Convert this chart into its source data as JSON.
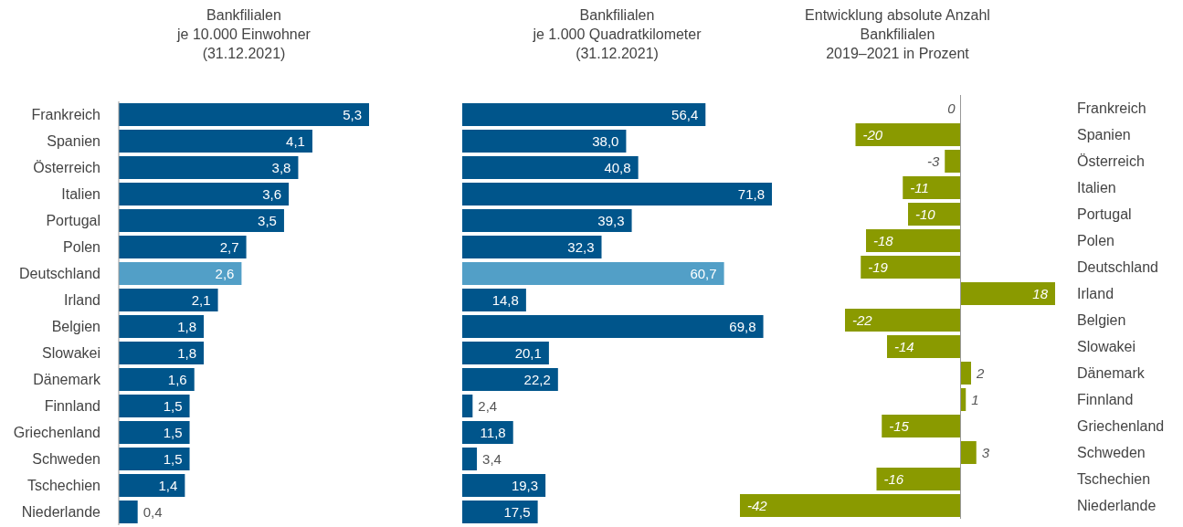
{
  "chart_data": [
    {
      "type": "bar",
      "orientation": "horizontal",
      "title": "Bankfilialen\nje 10.000 Einwohner\n(31.12.2021)",
      "tick_labels": "y",
      "categories": [
        "Frankreich",
        "Spanien",
        "Österreich",
        "Italien",
        "Portugal",
        "Polen",
        "Deutschland",
        "Irland",
        "Belgien",
        "Slowakei",
        "Dänemark",
        "Finnland",
        "Griechenland",
        "Schweden",
        "Tschechien",
        "Niederlande"
      ],
      "values": [
        5.3,
        4.1,
        3.8,
        3.6,
        3.5,
        2.7,
        2.6,
        2.1,
        1.8,
        1.8,
        1.6,
        1.5,
        1.5,
        1.5,
        1.4,
        0.4
      ],
      "value_labels": [
        "5,3",
        "4,1",
        "3,8",
        "3,6",
        "3,5",
        "2,7",
        "2,6",
        "2,1",
        "1,8",
        "1,8",
        "1,6",
        "1,5",
        "1,5",
        "1,5",
        "1,4",
        "0,4"
      ],
      "colors": [
        "#00558b",
        "#00558b",
        "#00558b",
        "#00558b",
        "#00558b",
        "#00558b",
        "#529fc7",
        "#00558b",
        "#00558b",
        "#00558b",
        "#00558b",
        "#00558b",
        "#00558b",
        "#00558b",
        "#00558b",
        "#00558b"
      ]
    },
    {
      "type": "bar",
      "orientation": "horizontal",
      "title": "Bankfilialen\nje 1.000 Quadratkilometer\n(31.12.2021)",
      "tick_labels": false,
      "categories": [
        null,
        null,
        null,
        null,
        null,
        null,
        null,
        null,
        null,
        null,
        null,
        null,
        null,
        null,
        null,
        null
      ],
      "values": [
        56.4,
        38.0,
        40.8,
        71.8,
        39.3,
        32.3,
        60.7,
        14.8,
        69.8,
        20.1,
        22.2,
        2.4,
        11.8,
        3.4,
        19.3,
        17.5
      ],
      "value_labels": [
        "56,4",
        "38,0",
        "40,8",
        "71,8",
        "39,3",
        "32,3",
        "60,7",
        "14,8",
        "69,8",
        "20,1",
        "22,2",
        "2,4",
        "11,8",
        "3,4",
        "19,3",
        "17,5"
      ],
      "colors": [
        "#00558b",
        "#00558b",
        "#00558b",
        "#00558b",
        "#00558b",
        "#00558b",
        "#529fc7",
        "#00558b",
        "#00558b",
        "#00558b",
        "#00558b",
        "#00558b",
        "#00558b",
        "#00558b",
        "#00558b",
        "#00558b"
      ]
    },
    {
      "type": "bar",
      "orientation": "horizontal",
      "title": "Entwicklung absolute Anzahl\nBankfilialen\n2019–2021 in Prozent",
      "tick_labels": "y",
      "categories": [
        "Frankreich",
        "Spanien",
        "Österreich",
        "Italien",
        "Portugal",
        "Polen",
        "Deutschland",
        "Irland",
        "Belgien",
        "Slowakei",
        "Dänemark",
        "Finnland",
        "Griechenland",
        "Schweden",
        "Tschechien",
        "Niederlande"
      ],
      "values": [
        0,
        -20,
        -3,
        -11,
        -10,
        -18,
        -19,
        18,
        -22,
        -14,
        2,
        1,
        -15,
        3,
        -16,
        -42
      ],
      "value_labels": [
        "0",
        "-20",
        "-3",
        "-11",
        "-10",
        "-18",
        "-19",
        "18",
        "-22",
        "-14",
        "2",
        "1",
        "-15",
        "3",
        "-16",
        "-42"
      ],
      "color": "#8a9a00"
    }
  ]
}
